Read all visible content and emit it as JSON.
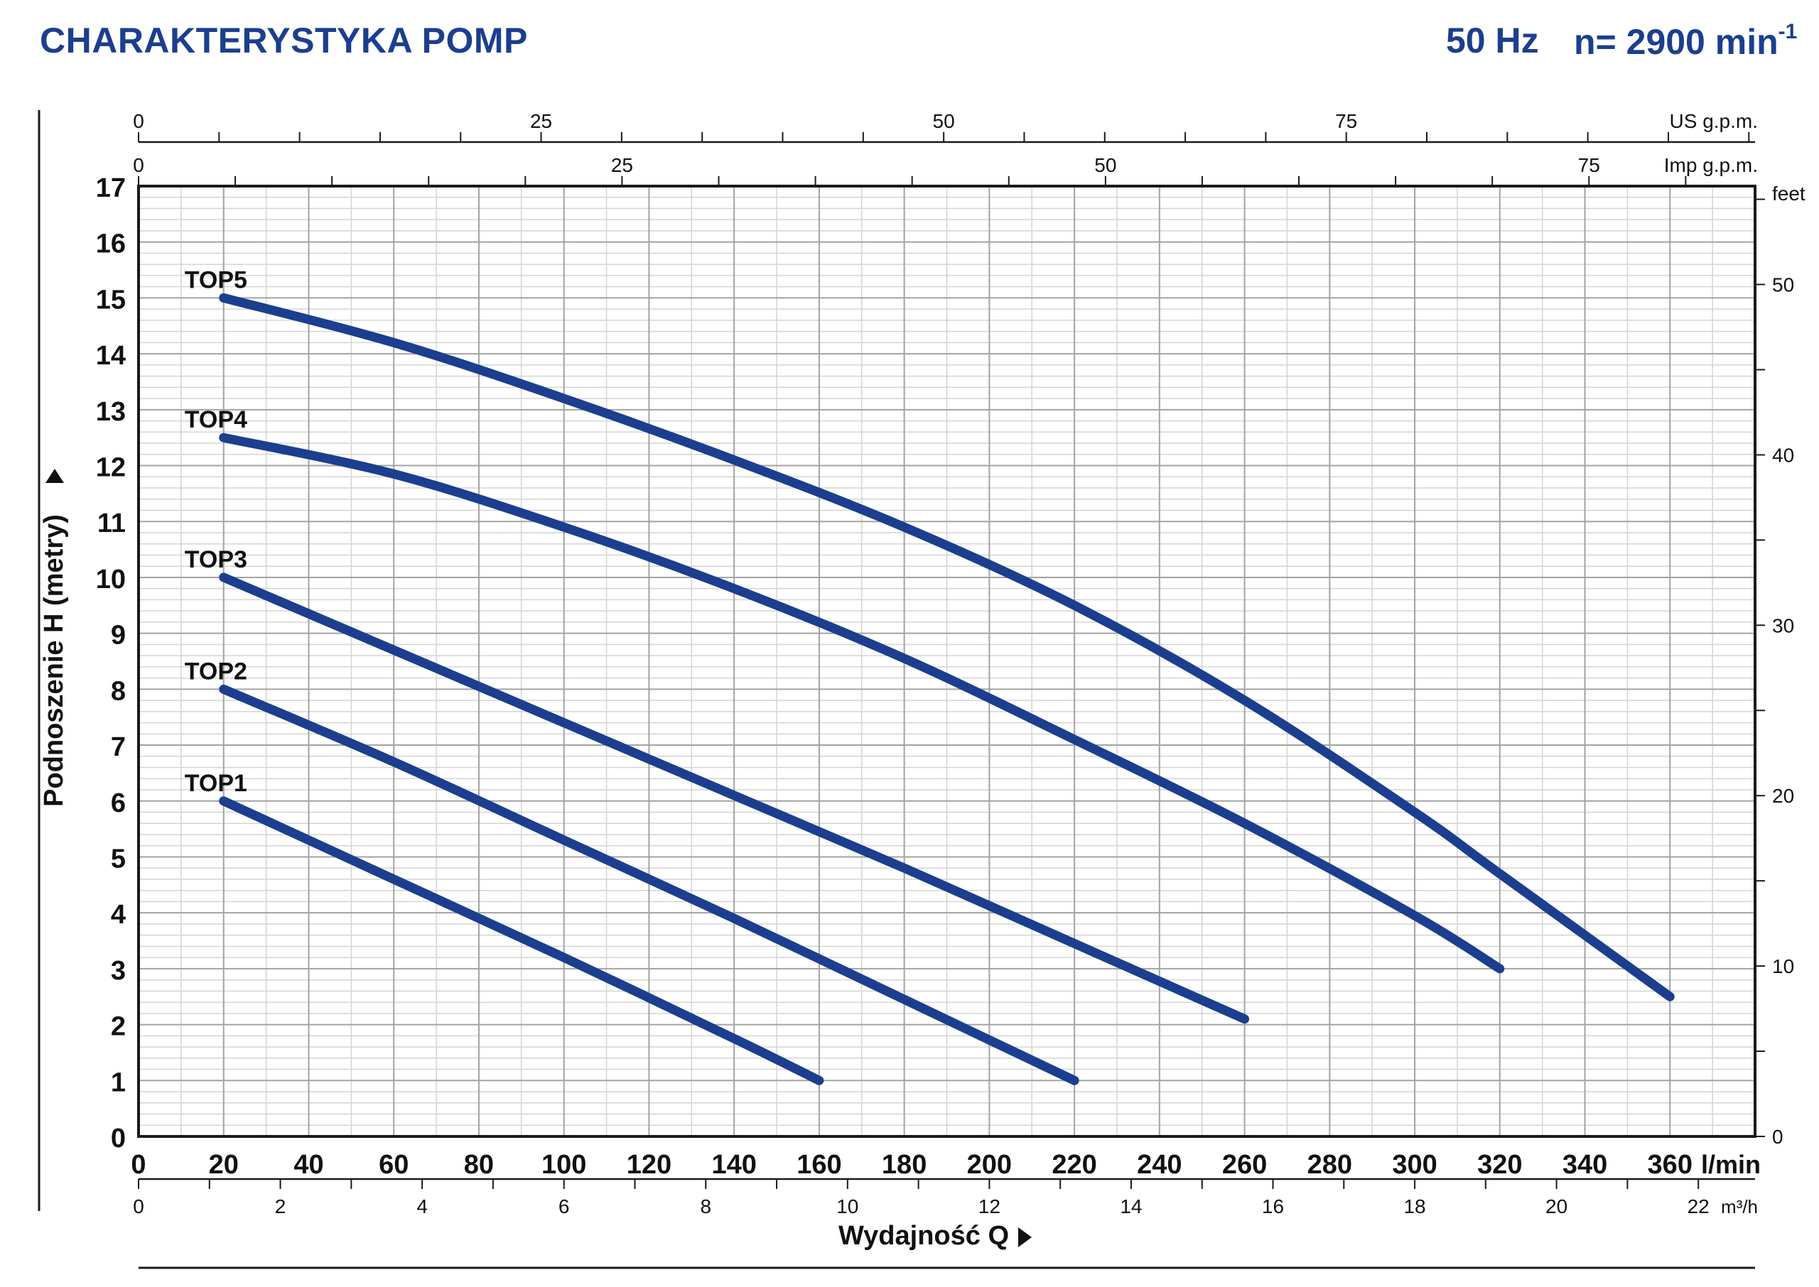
{
  "header": {
    "title": "CHARAKTERYSTYKA POMP",
    "frequency": "50 Hz",
    "speed": "n= 2900 min",
    "speed_exp": "-1"
  },
  "colors": {
    "curve": "#1b3e8f",
    "title": "#1b3e8f",
    "grid_major": "#a3a3a3",
    "grid_minor": "#d4d4d4",
    "axis": "#1a1a1a"
  },
  "chart_data": {
    "type": "line",
    "title": "CHARAKTERYSTYKA POMP",
    "xlabel": "Wydajność Q",
    "ylabel": "Podnoszenie H (metry)",
    "xlim": [
      0,
      380
    ],
    "ylim": [
      0,
      17
    ],
    "x_unit": "l/min",
    "x_ticks": [
      0,
      20,
      40,
      60,
      80,
      100,
      120,
      140,
      160,
      180,
      200,
      220,
      240,
      260,
      280,
      300,
      320,
      340,
      360
    ],
    "y_ticks": [
      0,
      1,
      2,
      3,
      4,
      5,
      6,
      7,
      8,
      9,
      10,
      11,
      12,
      13,
      14,
      15,
      16,
      17
    ],
    "grid": true,
    "secondary_axes": {
      "us_gpm": {
        "label": "US g.p.m.",
        "ticks": [
          0,
          25,
          50,
          75
        ]
      },
      "imp_gpm": {
        "label": "Imp g.p.m.",
        "ticks": [
          0,
          25,
          50,
          75
        ]
      },
      "feet": {
        "label": "feet",
        "ticks": [
          0,
          10,
          20,
          30,
          40,
          50
        ]
      },
      "m3h": {
        "label": "m³/h",
        "ticks": [
          0,
          2,
          4,
          6,
          8,
          10,
          12,
          14,
          16,
          18,
          20,
          22
        ]
      }
    },
    "series": [
      {
        "name": "TOP1",
        "x": [
          20,
          60,
          100,
          140,
          160
        ],
        "y": [
          6,
          4.6,
          3.2,
          1.75,
          1
        ]
      },
      {
        "name": "TOP2",
        "x": [
          20,
          60,
          100,
          140,
          180,
          220
        ],
        "y": [
          8,
          6.7,
          5.3,
          3.9,
          2.45,
          1
        ]
      },
      {
        "name": "TOP3",
        "x": [
          20,
          60,
          100,
          140,
          180,
          220,
          260
        ],
        "y": [
          10,
          8.7,
          7.4,
          6.1,
          4.8,
          3.45,
          2.1
        ]
      },
      {
        "name": "TOP4",
        "x": [
          20,
          60,
          100,
          140,
          180,
          220,
          260,
          300,
          320
        ],
        "y": [
          12.5,
          11.85,
          10.9,
          9.8,
          8.55,
          7.1,
          5.6,
          3.95,
          3
        ]
      },
      {
        "name": "TOP5",
        "x": [
          20,
          60,
          100,
          140,
          180,
          220,
          260,
          300,
          320,
          360
        ],
        "y": [
          15,
          14.2,
          13.2,
          12.1,
          10.9,
          9.5,
          7.8,
          5.8,
          4.7,
          2.5
        ]
      }
    ]
  }
}
